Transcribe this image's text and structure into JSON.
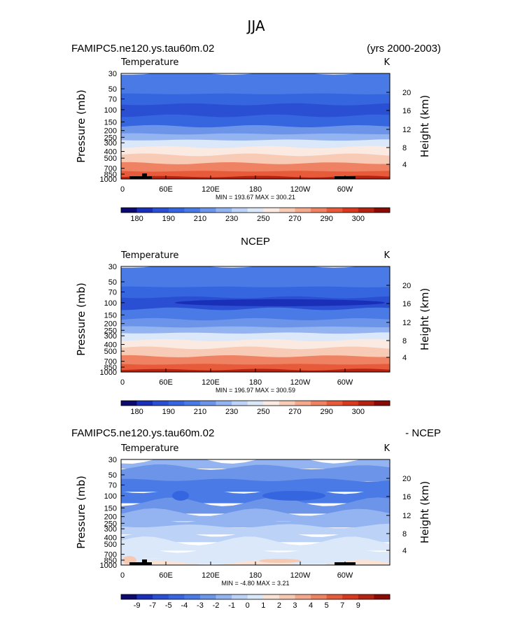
{
  "figure": {
    "season_title": "JJA"
  },
  "palettes": {
    "absolute": [
      "#0c0a6e",
      "#1a2fb8",
      "#2a4fd2",
      "#3565df",
      "#4a7ae6",
      "#6c95ea",
      "#93b4f0",
      "#bcd2f6",
      "#dae8fa",
      "#fbeae2",
      "#f8cbb6",
      "#f4a98d",
      "#ee8262",
      "#e85b3a",
      "#d83a20",
      "#b42312",
      "#8a0b06"
    ],
    "difference": [
      "#0c0a6e",
      "#1a2fb8",
      "#2a4fd2",
      "#3565df",
      "#4a7ae6",
      "#6c95ea",
      "#93b4f0",
      "#bcd2f6",
      "#dae8fa",
      "#f8e3d6",
      "#f6c9b3",
      "#f2a88c",
      "#ec8362",
      "#e45c3b",
      "#d83a20",
      "#b42312",
      "#8a0b06"
    ]
  },
  "chart_data": [
    {
      "type": "heatmap",
      "title": "FAMIPC5.ne120.ys.tau60m.02",
      "subtitle_right": "(yrs 2000-2003)",
      "variable_label": "Temperature",
      "units": "K",
      "ylabel_left": "Pressure  (mb)",
      "ylabel_right": "Height  (km)",
      "x_ticks": [
        "0",
        "60E",
        "120E",
        "180",
        "120W",
        "60W"
      ],
      "y_ticks_left": [
        "30",
        "50",
        "70",
        "100",
        "150",
        "200",
        "250",
        "300",
        "400",
        "500",
        "700",
        "850",
        "1000"
      ],
      "y_ticks_right": [
        "20",
        "16",
        "12",
        "8",
        "4"
      ],
      "ylim": [
        30,
        1000
      ],
      "min": 193.67,
      "max": 300.21,
      "minmax_text": "MIN = 193.67   MAX = 300.21",
      "colorbar_labels": [
        "180",
        "190",
        "210",
        "230",
        "250",
        "270",
        "290",
        "300"
      ],
      "layers": [
        {
          "level": 30,
          "color": 4
        },
        {
          "level": 50,
          "color": 4
        },
        {
          "level": 70,
          "color": 3
        },
        {
          "level": 100,
          "color": 2
        },
        {
          "level": 150,
          "color": 3
        },
        {
          "level": 200,
          "color": 5
        },
        {
          "level": 250,
          "color": 6
        },
        {
          "level": 300,
          "color": 8
        },
        {
          "level": 400,
          "color": 9
        },
        {
          "level": 500,
          "color": 10
        },
        {
          "level": 700,
          "color": 12
        },
        {
          "level": 850,
          "color": 13
        },
        {
          "level": 1000,
          "color": 15
        }
      ]
    },
    {
      "type": "heatmap",
      "title": "NCEP",
      "variable_label": "Temperature",
      "units": "K",
      "ylabel_left": "Pressure  (mb)",
      "ylabel_right": "Height  (km)",
      "x_ticks": [
        "0",
        "60E",
        "120E",
        "180",
        "120W",
        "60W"
      ],
      "y_ticks_left": [
        "30",
        "50",
        "70",
        "100",
        "150",
        "200",
        "250",
        "300",
        "400",
        "500",
        "700",
        "850",
        "1000"
      ],
      "y_ticks_right": [
        "20",
        "16",
        "12",
        "8",
        "4"
      ],
      "ylim": [
        30,
        1000
      ],
      "min": 196.97,
      "max": 300.59,
      "minmax_text": "MIN = 196.97   MAX = 300.59",
      "colorbar_labels": [
        "180",
        "190",
        "210",
        "230",
        "250",
        "270",
        "290",
        "300"
      ],
      "layers": [
        {
          "level": 30,
          "color": 4
        },
        {
          "level": 50,
          "color": 4
        },
        {
          "level": 70,
          "color": 3
        },
        {
          "level": 100,
          "color": 2
        },
        {
          "level": 150,
          "color": 4
        },
        {
          "level": 200,
          "color": 5
        },
        {
          "level": 250,
          "color": 6
        },
        {
          "level": 300,
          "color": 8
        },
        {
          "level": 400,
          "color": 9
        },
        {
          "level": 500,
          "color": 10
        },
        {
          "level": 700,
          "color": 12
        },
        {
          "level": 850,
          "color": 13
        },
        {
          "level": 1000,
          "color": 15
        }
      ]
    },
    {
      "type": "heatmap",
      "title": "FAMIPC5.ne120.ys.tau60m.02",
      "subtitle_right": "- NCEP",
      "variable_label": "Temperature",
      "units": "K",
      "ylabel_left": "Pressure  (mb)",
      "ylabel_right": "Height  (km)",
      "x_ticks": [
        "0",
        "60E",
        "120E",
        "180",
        "120W",
        "60W"
      ],
      "y_ticks_left": [
        "30",
        "50",
        "70",
        "100",
        "150",
        "200",
        "250",
        "300",
        "400",
        "500",
        "700",
        "850",
        "1000"
      ],
      "y_ticks_right": [
        "20",
        "16",
        "12",
        "8",
        "4"
      ],
      "ylim": [
        30,
        1000
      ],
      "min": -4.8,
      "max": 3.21,
      "minmax_text": "MIN =  -4.80   MAX =   3.21",
      "colorbar_labels": [
        "-9",
        "-7",
        "-5",
        "-4",
        "-3",
        "-2",
        "-1",
        "0",
        "1",
        "2",
        "3",
        "4",
        "5",
        "7",
        "9"
      ],
      "layers": [
        {
          "level": 30,
          "color": 6
        },
        {
          "level": 50,
          "color": 5
        },
        {
          "level": 70,
          "color": 4
        },
        {
          "level": 100,
          "color": 4
        },
        {
          "level": 150,
          "color": 5
        },
        {
          "level": 200,
          "color": 6
        },
        {
          "level": 250,
          "color": 6
        },
        {
          "level": 300,
          "color": 7
        },
        {
          "level": 400,
          "color": 7
        },
        {
          "level": 500,
          "color": 8
        },
        {
          "level": 700,
          "color": 8
        },
        {
          "level": 850,
          "color": 8
        },
        {
          "level": 1000,
          "color": 9
        }
      ]
    }
  ]
}
